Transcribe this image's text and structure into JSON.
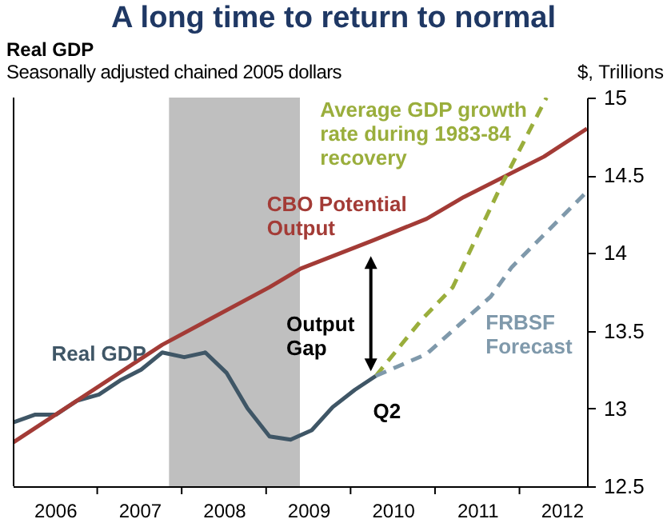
{
  "chart_data": {
    "type": "line",
    "title": "A long time to return to normal",
    "subtitle": "Real GDP",
    "ylabel": "$, Trillions",
    "annotations": [
      "Seasonally adjusted chained 2005 dollars",
      "Output Gap",
      "Q2"
    ],
    "xlim": [
      2006,
      2012.8
    ],
    "xticks": [
      {
        "value": 2006.5,
        "label": "2006"
      },
      {
        "value": 2007,
        "label": null
      },
      {
        "value": 2007.5,
        "label": "2007"
      },
      {
        "value": 2008,
        "label": null
      },
      {
        "value": 2008.5,
        "label": "2008"
      },
      {
        "value": 2009,
        "label": null
      },
      {
        "value": 2009.5,
        "label": "2009"
      },
      {
        "value": 2010,
        "label": null
      },
      {
        "value": 2010.5,
        "label": "2010"
      },
      {
        "value": 2011,
        "label": null
      },
      {
        "value": 2011.5,
        "label": "2011"
      },
      {
        "value": 2012,
        "label": null
      },
      {
        "value": 2012.5,
        "label": "2012"
      }
    ],
    "ylim": [
      12.5,
      15
    ],
    "yticks": [
      12.5,
      13,
      13.5,
      14,
      14.5,
      15
    ],
    "grid": false,
    "legend": false,
    "bands": [
      {
        "axis": "x",
        "from": 2007.85,
        "to": 2009.4,
        "color": "#bfbfbf"
      }
    ],
    "series": [
      {
        "name": "Real GDP",
        "color": "#3f5666",
        "line_style": "solid",
        "x": [
          2006.0,
          2006.26,
          2006.51,
          2006.76,
          2007.02,
          2007.27,
          2007.52,
          2007.77,
          2008.03,
          2008.28,
          2008.53,
          2008.78,
          2009.04,
          2009.29,
          2009.54,
          2009.79,
          2010.05,
          2010.3
        ],
        "values": [
          12.91,
          12.96,
          12.96,
          13.05,
          13.09,
          13.18,
          13.25,
          13.36,
          13.33,
          13.36,
          13.23,
          13.0,
          12.82,
          12.8,
          12.86,
          13.01,
          13.12,
          13.21
        ]
      },
      {
        "name": "CBO Potential Output",
        "color": "#a33b36",
        "line_style": "solid",
        "x": [
          2006.0,
          2007.77,
          2009.04,
          2009.41,
          2010.26,
          2010.9,
          2011.34,
          2012.29,
          2012.8
        ],
        "values": [
          12.78,
          13.41,
          13.78,
          13.9,
          14.08,
          14.22,
          14.36,
          14.62,
          14.8
        ]
      },
      {
        "name": "Average GDP growth rate during 1983-84 recovery",
        "color": "#9aae3c",
        "line_style": "dashed",
        "x": [
          2010.3,
          2010.84,
          2011.21,
          2011.78,
          2012.32
        ],
        "values": [
          13.21,
          13.57,
          13.78,
          14.43,
          15.0
        ]
      },
      {
        "name": "FRBSF Forecast",
        "color": "#7f99ab",
        "line_style": "dashed",
        "x": [
          2010.3,
          2010.9,
          2011.66,
          2011.91,
          2012.79
        ],
        "values": [
          13.21,
          13.35,
          13.72,
          13.91,
          14.39
        ]
      }
    ]
  }
}
